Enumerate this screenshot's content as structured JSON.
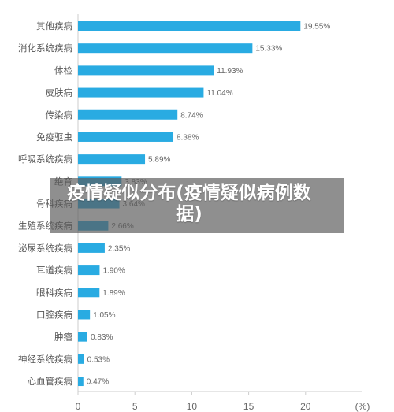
{
  "banner": {
    "title": "疫情疑似分布(疫情疑似病例数据)"
  },
  "colors": {
    "bar": "#29ABE2",
    "axis": "#CCCCCC",
    "category_text": "#555555",
    "value_text": "#666666",
    "tick_text": "#666666",
    "banner_bg": "rgba(90,90,90,0.68)"
  },
  "chart_data": {
    "type": "bar",
    "orientation": "horizontal",
    "categories": [
      "其他疾病",
      "消化系统疾病",
      "体检",
      "皮肤病",
      "传染病",
      "免疫驱虫",
      "呼吸系统疾病",
      "绝育",
      "骨科疾病",
      "生殖系统疾病",
      "泌尿系统疾病",
      "耳道疾病",
      "眼科疾病",
      "口腔疾病",
      "肿瘤",
      "神经系统疾病",
      "心血管疾病"
    ],
    "values": [
      19.55,
      15.33,
      11.93,
      11.04,
      8.74,
      8.38,
      5.89,
      3.83,
      3.64,
      2.66,
      2.35,
      1.9,
      1.89,
      1.05,
      0.83,
      0.53,
      0.47
    ],
    "data_labels": [
      "19.55%",
      "15.33%",
      "11.93%",
      "11.04%",
      "8.74%",
      "8.38%",
      "5.89%",
      "3.83%",
      "3.64%",
      "2.66%",
      "2.35%",
      "1.90%",
      "1.89%",
      "1.05%",
      "0.83%",
      "0.53%",
      "0.47%"
    ],
    "xlim": [
      0,
      25
    ],
    "xticks": [
      0,
      5,
      10,
      15,
      20
    ],
    "xlabel": "(%)",
    "grid": false,
    "legend": "none"
  }
}
